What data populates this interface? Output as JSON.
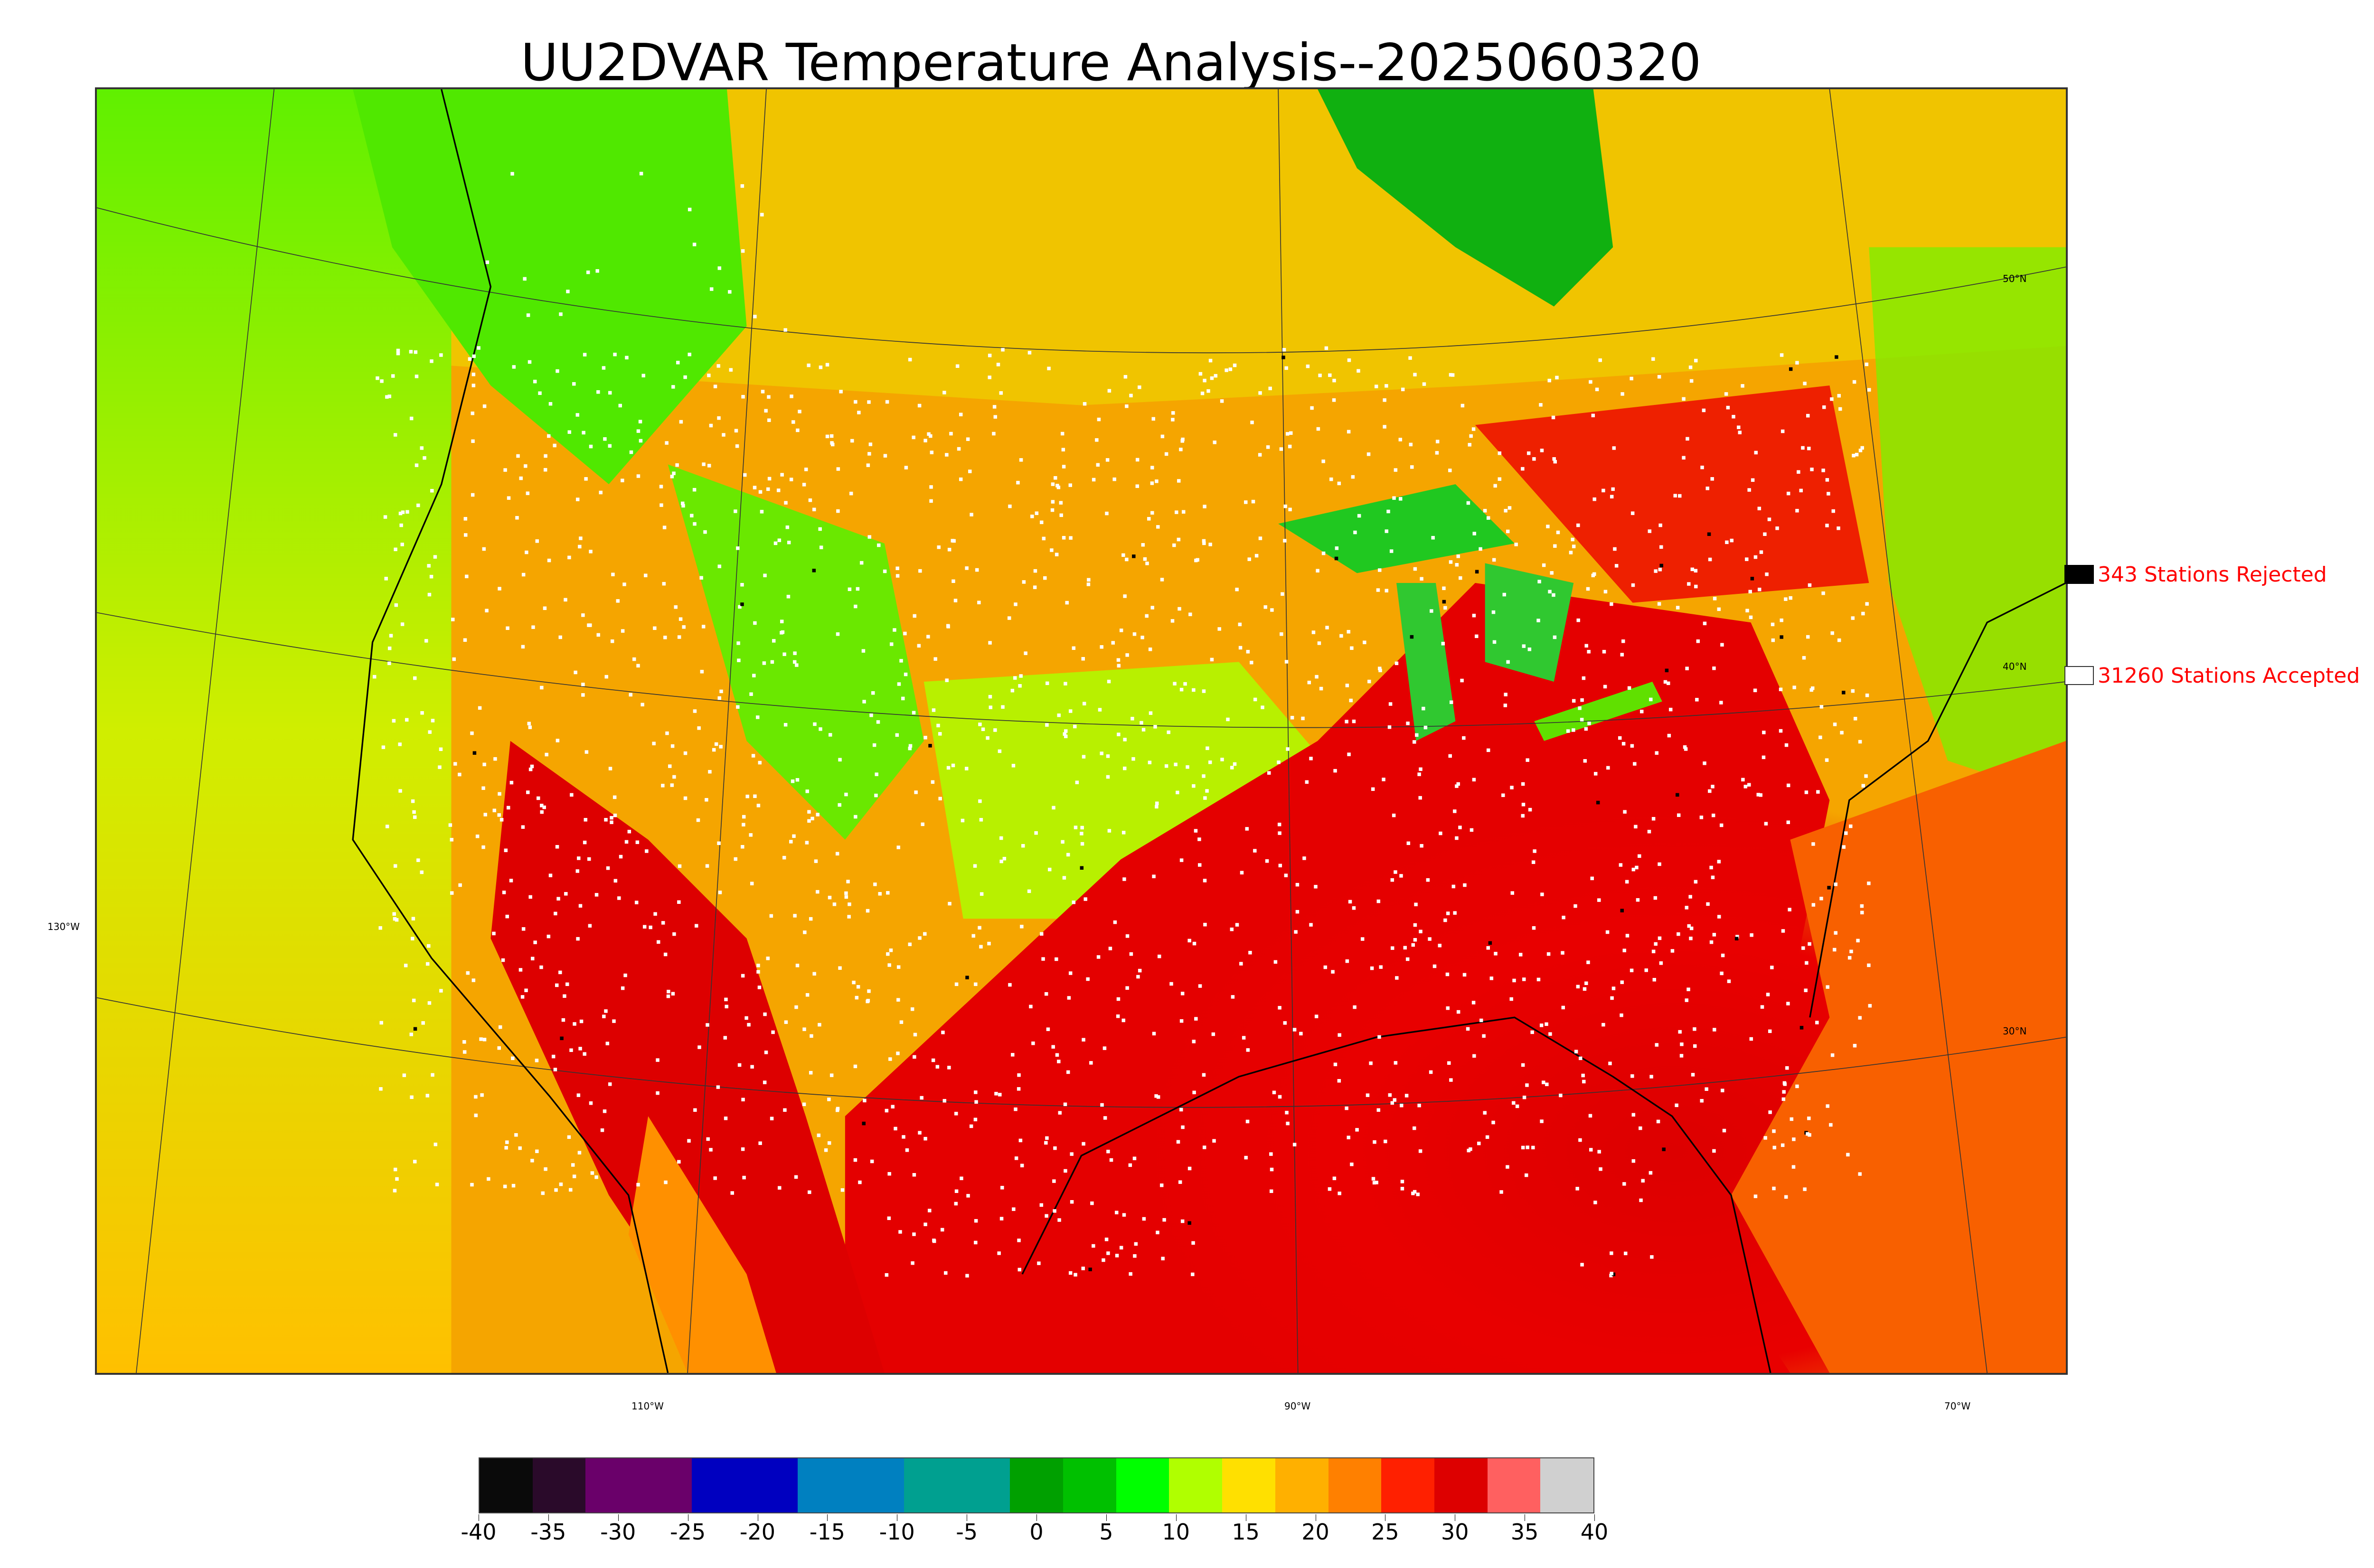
{
  "title": "UU2DVAR Temperature Analysis--2025060320",
  "legend": {
    "rejected_label": "343 Stations Rejected",
    "accepted_label": "31260 Stations Accepted",
    "rejected_color": "#000000",
    "accepted_color": "#ffffff",
    "text_color": "#ff0000"
  },
  "longitude_labels": [
    "130°W",
    "110°W",
    "90°W",
    "70°W"
  ],
  "latitude_labels": [
    "50°N",
    "40°N",
    "30°N"
  ],
  "colorbar": {
    "ticks": [
      "-40",
      "-35",
      "-30",
      "-25",
      "-20",
      "-15",
      "-10",
      "-5",
      "0",
      "5",
      "10",
      "15",
      "20",
      "25",
      "30",
      "35",
      "40"
    ],
    "colors": [
      "#0a0a0a",
      "#2a0a2a",
      "#6a006a",
      "#6a006a",
      "#0000c0",
      "#0000c0",
      "#0080c0",
      "#0080c0",
      "#00a090",
      "#00a090",
      "#00a000",
      "#00c000",
      "#00ff00",
      "#b0ff00",
      "#ffe000",
      "#ffb000",
      "#ff8000",
      "#ff2000",
      "#dd0000",
      "#ff6060",
      "#d0d0d0"
    ]
  }
}
